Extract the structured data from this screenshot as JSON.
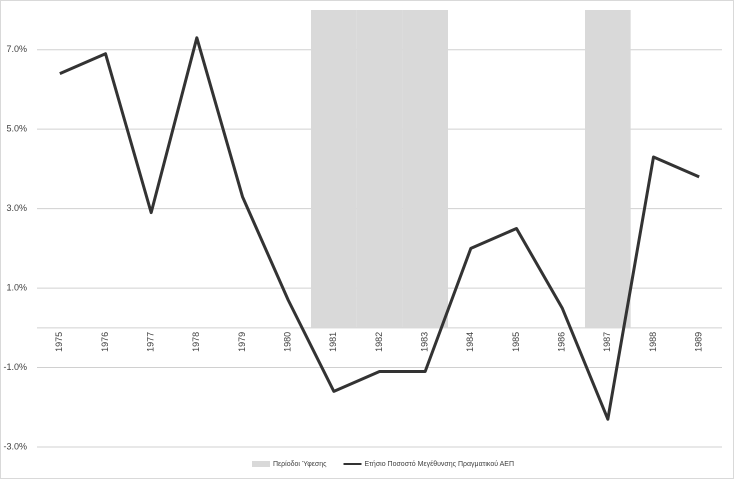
{
  "chart_data": {
    "type": "combo",
    "categories": [
      "1975",
      "1976",
      "1977",
      "1978",
      "1979",
      "1980",
      "1981",
      "1982",
      "1983",
      "1984",
      "1985",
      "1986",
      "1987",
      "1988",
      "1989"
    ],
    "series": [
      {
        "name": "Περίοδοι Ύφεσης",
        "type": "bar",
        "color": "#d9d9d9",
        "values": [
          null,
          null,
          null,
          null,
          null,
          null,
          8,
          8,
          8,
          null,
          null,
          null,
          8,
          null,
          null
        ]
      },
      {
        "name": "Ετήσιο Ποσοστό Μεγέθυνσης Πραγματικού ΑΕΠ",
        "type": "line",
        "color": "#333333",
        "values": [
          6.4,
          6.9,
          2.9,
          7.3,
          3.3,
          0.7,
          -1.6,
          -1.1,
          -1.1,
          2.0,
          2.5,
          0.5,
          -2.3,
          4.3,
          3.8
        ]
      }
    ],
    "ylim": [
      -3,
      8
    ],
    "yticks": [
      {
        "value": -3,
        "label": "-3.0%"
      },
      {
        "value": -1,
        "label": "-1.0%"
      },
      {
        "value": 1,
        "label": "1.0%"
      },
      {
        "value": 3,
        "label": "3.0%"
      },
      {
        "value": 5,
        "label": "5.0%"
      },
      {
        "value": 7,
        "label": "7.0%"
      }
    ],
    "grid": true,
    "legend": "bottom"
  }
}
